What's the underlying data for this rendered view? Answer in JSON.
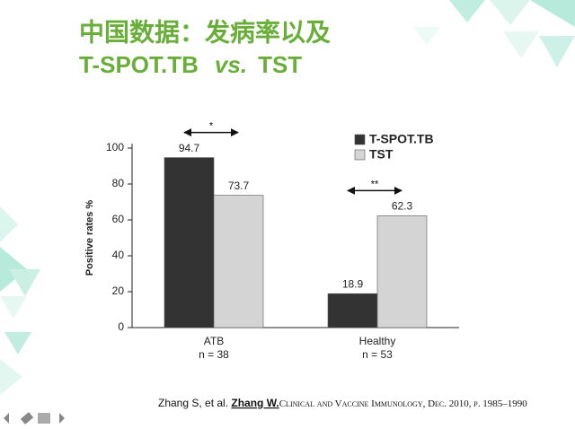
{
  "slide": {
    "title_line1": "中国数据：发病率以及",
    "title_line2": [
      "T-SPOT.TB",
      "vs.",
      "TST"
    ],
    "citation": [
      "Zhang S, et al. ",
      "Zhang W.",
      "Clinical and Vaccine Immunology, Dec. 2010, p. 1985–1990"
    ]
  },
  "chart_data": {
    "type": "bar",
    "y_label": "Positive rates %",
    "categories": [
      "ATB",
      "Healthy"
    ],
    "category_notes": [
      "n = 38",
      "n = 53"
    ],
    "series": [
      {
        "name": "T-SPOT.TB",
        "color": "#333333",
        "values": [
          94.7,
          18.9
        ]
      },
      {
        "name": "TST",
        "color": "#d4d4d4",
        "values": [
          73.7,
          62.3
        ]
      }
    ],
    "annotations": [
      "*",
      "**"
    ],
    "ylim": [
      0,
      100
    ],
    "yticks": [
      0,
      20,
      40,
      60,
      80,
      100
    ]
  }
}
